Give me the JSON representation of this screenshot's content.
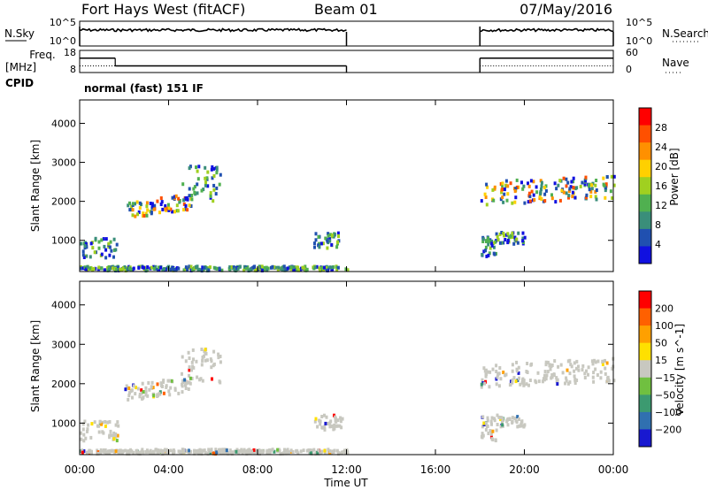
{
  "header": {
    "station": "Fort Hays West (fitACF)",
    "beam": "Beam 01",
    "date": "07/May/2016"
  },
  "left_labels": {
    "nsky": "N.Sky",
    "freq": "Freq.",
    "freq_unit": "[MHz]",
    "cpid": "CPID"
  },
  "right_labels": {
    "nsearch": "N.Search",
    "nave": "Nave"
  },
  "cpid_text": "normal (fast) 151 IF",
  "colors": {
    "power": [
      "#1010e0",
      "#2050b0",
      "#3a8e7a",
      "#50b050",
      "#a0d020",
      "#ffd000",
      "#ff9000",
      "#ff5000",
      "#ff0000"
    ],
    "velocity": [
      "#1818d0",
      "#3070b0",
      "#3c9a70",
      "#70c040",
      "#c8c8c0",
      "#ffe000",
      "#ffa000",
      "#ff6000",
      "#ff0000"
    ]
  },
  "chart_data": [
    {
      "type": "line",
      "name": "noise",
      "left_ticks": [
        "10^5",
        "10^0"
      ],
      "right_ticks": [
        "10^5",
        "10^0"
      ],
      "segments": [
        [
          0,
          12
        ],
        [
          18,
          24
        ]
      ]
    },
    {
      "type": "line",
      "name": "freq-nave",
      "left_ticks": [
        "18",
        "8"
      ],
      "right_ticks": [
        "60",
        "0"
      ],
      "freq_segments": [
        {
          "x": [
            0,
            1.6
          ],
          "y": 14.5
        },
        {
          "x": [
            1.6,
            12
          ],
          "y": 11
        },
        {
          "x": [
            18,
            24
          ],
          "y": 14.5
        }
      ],
      "nave_segments": [
        {
          "x": [
            0,
            1.6
          ],
          "y": 18
        },
        {
          "x": [
            1.6,
            12
          ],
          "y": 18
        },
        {
          "x": [
            18,
            24
          ],
          "y": 18
        }
      ]
    },
    {
      "type": "heatmap",
      "name": "power",
      "ylabel": "Slant Range [km]",
      "yticks": [
        1000,
        2000,
        3000,
        4000
      ],
      "ylim": [
        200,
        4600
      ],
      "colorbar_label": "Power [dB]",
      "colorbar_ticks": [
        "28",
        "24",
        "20",
        "16",
        "12",
        "8",
        "4"
      ]
    },
    {
      "type": "heatmap",
      "name": "velocity",
      "ylabel": "Slant Range [km]",
      "xlabel": "Time UT",
      "xticks": [
        "00:00",
        "04:00",
        "08:00",
        "12:00",
        "16:00",
        "20:00",
        "00:00"
      ],
      "xlim": [
        0,
        24
      ],
      "yticks": [
        1000,
        2000,
        3000,
        4000
      ],
      "ylim": [
        200,
        4600
      ],
      "colorbar_label": "Velocity [m s^-1]",
      "colorbar_ticks": [
        "200",
        "100",
        "50",
        "15",
        "−15",
        "−50",
        "−100",
        "−200"
      ]
    }
  ]
}
